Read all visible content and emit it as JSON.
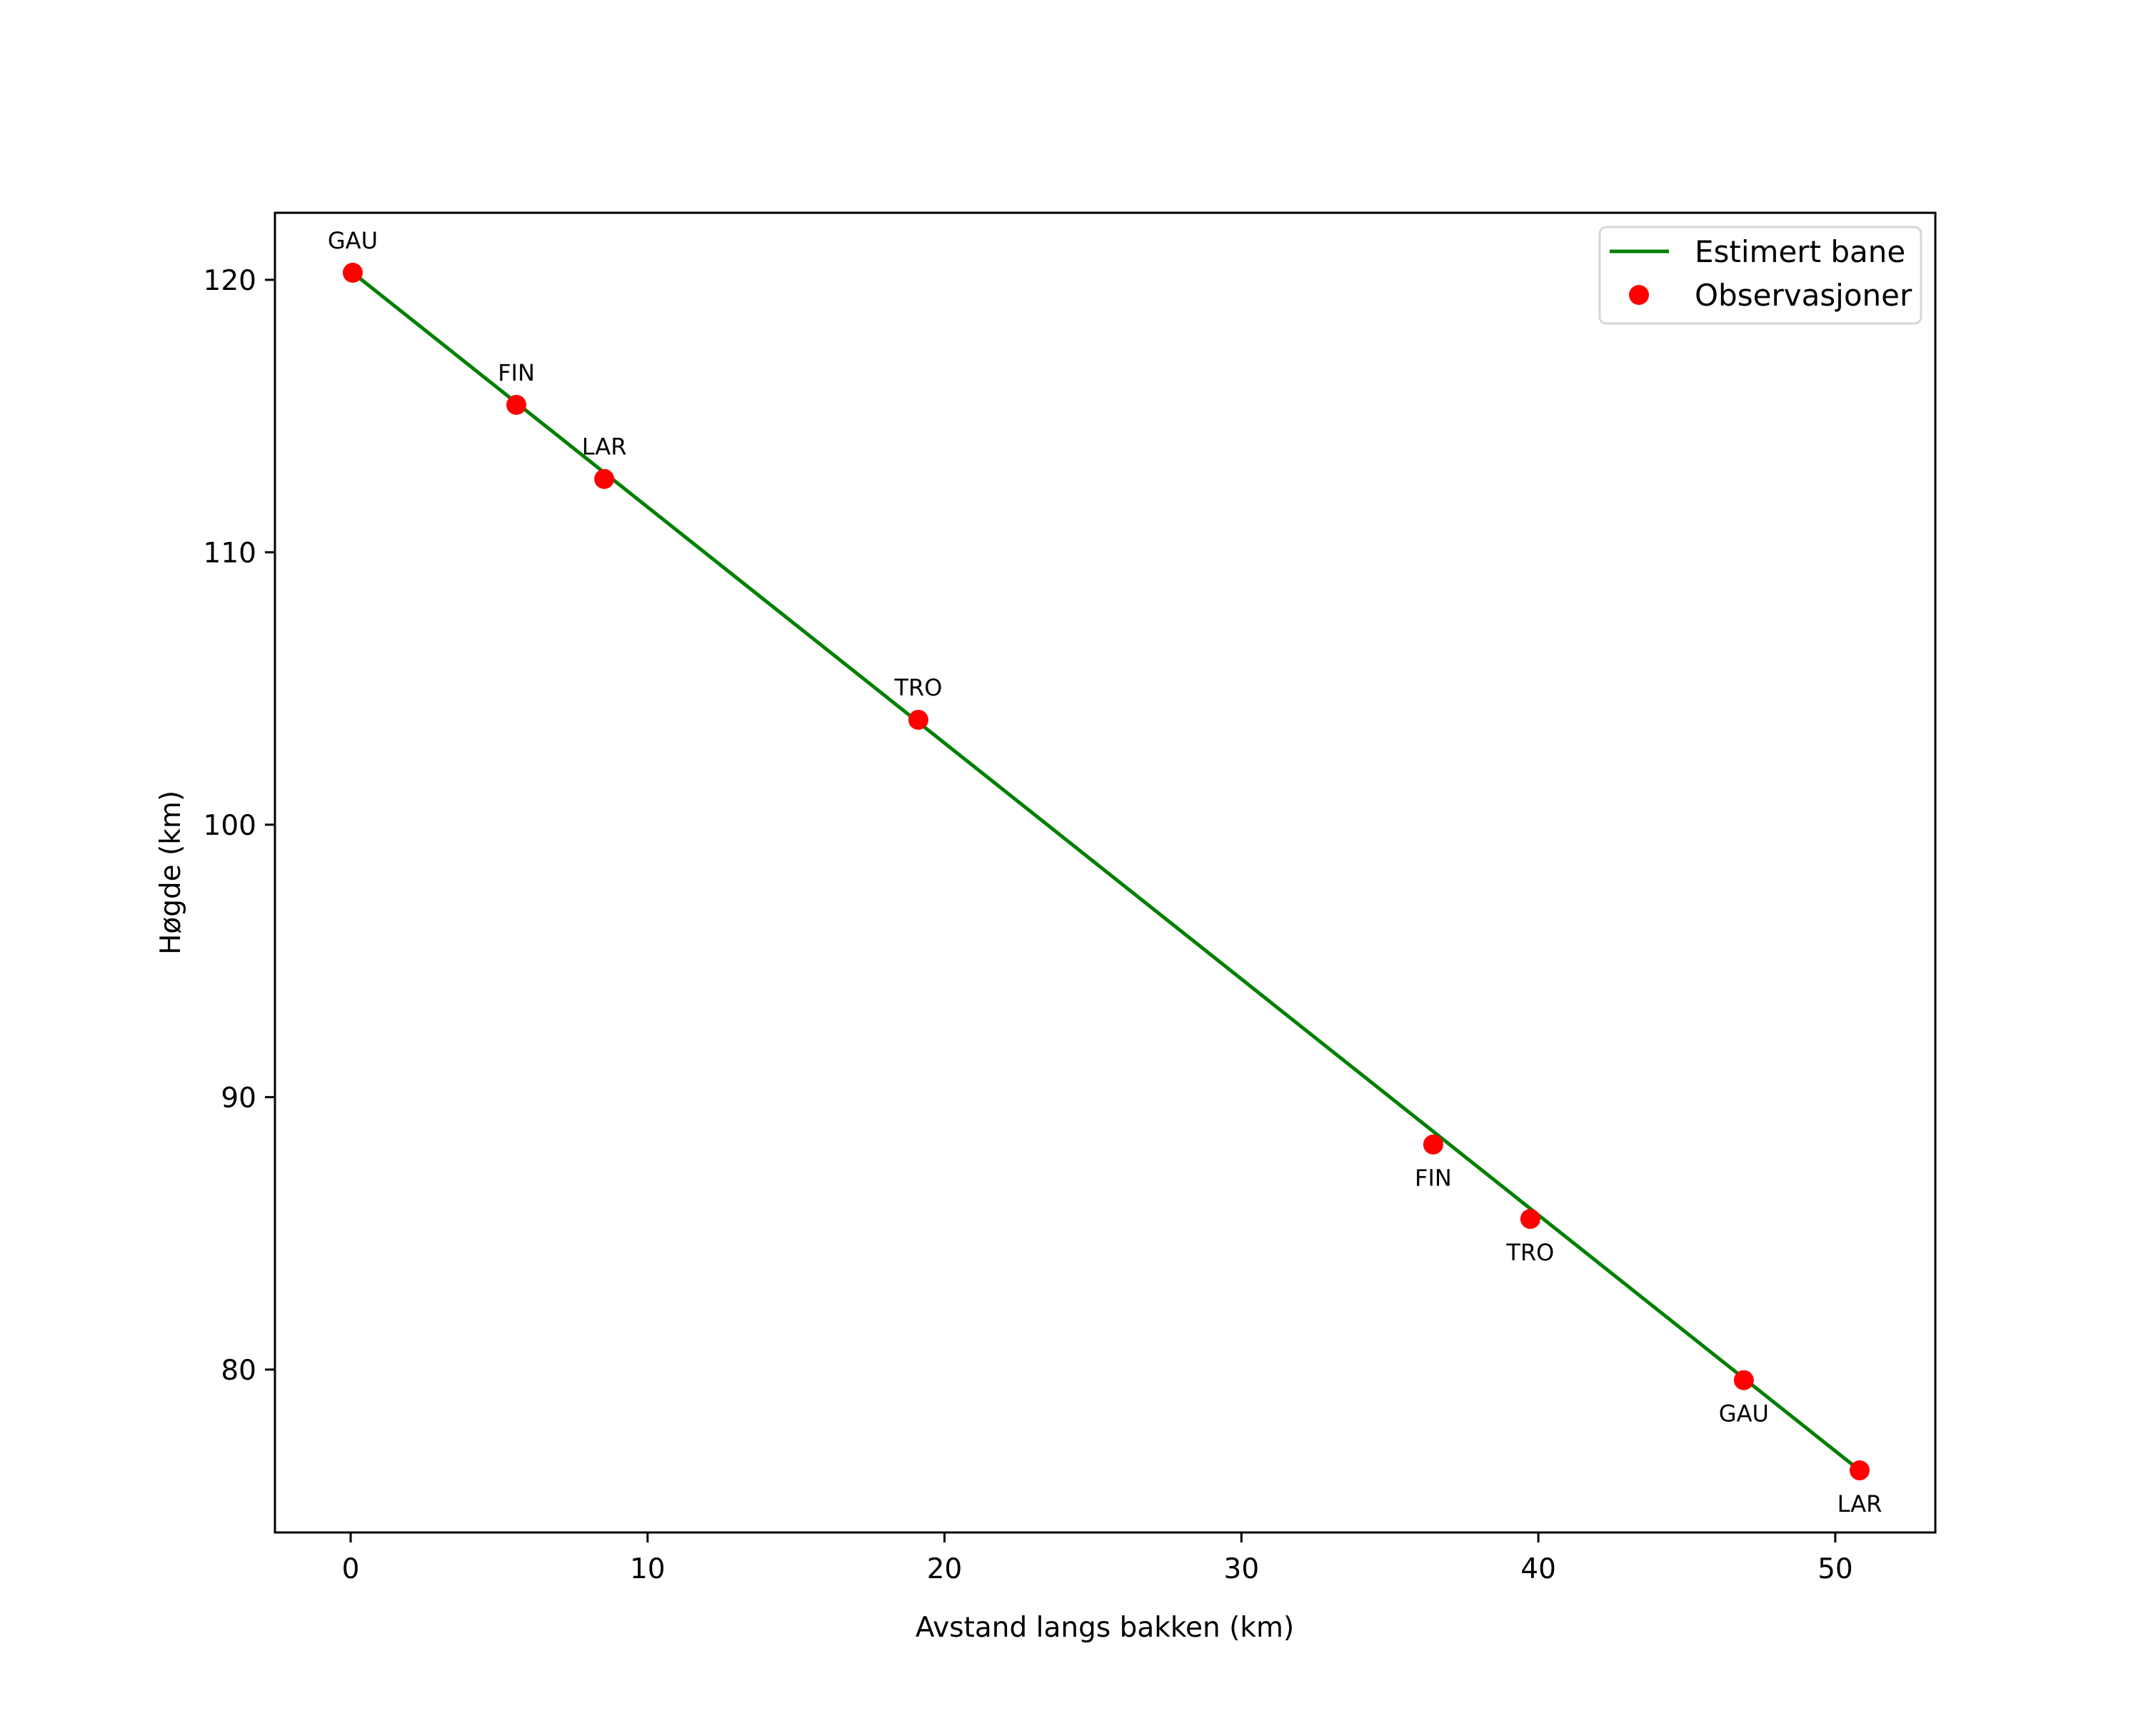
{
  "chart_data": {
    "type": "line",
    "title": "",
    "xlabel": "Avstand langs bakken (km)",
    "ylabel": "Høgde (km)",
    "xlim": [
      -2.55,
      53.37
    ],
    "ylim": [
      74.02,
      122.46
    ],
    "xticks": [
      0,
      10,
      20,
      30,
      40,
      50
    ],
    "yticks": [
      80,
      90,
      100,
      110,
      120
    ],
    "xtick_labels": [
      "0",
      "10",
      "20",
      "30",
      "40",
      "50"
    ],
    "ytick_labels": [
      "80",
      "90",
      "100",
      "110",
      "120"
    ],
    "grid": false,
    "legend_position": "upper right",
    "series": [
      {
        "name": "Estimert bane",
        "kind": "line",
        "color": "#008000",
        "x": [
          0.07,
          50.82
        ],
        "y": [
          120.26,
          76.3
        ]
      },
      {
        "name": "Observasjoner",
        "kind": "scatter",
        "color": "#ff0000",
        "points": [
          {
            "label": "GAU",
            "x": 0.07,
            "y": 120.26,
            "label_pos": "above"
          },
          {
            "label": "FIN",
            "x": 5.58,
            "y": 115.41,
            "label_pos": "above"
          },
          {
            "label": "LAR",
            "x": 8.54,
            "y": 112.69,
            "label_pos": "above"
          },
          {
            "label": "TRO",
            "x": 19.12,
            "y": 103.85,
            "label_pos": "above"
          },
          {
            "label": "FIN",
            "x": 36.46,
            "y": 88.26,
            "label_pos": "below"
          },
          {
            "label": "TRO",
            "x": 39.73,
            "y": 85.53,
            "label_pos": "below"
          },
          {
            "label": "GAU",
            "x": 46.92,
            "y": 79.61,
            "label_pos": "below"
          },
          {
            "label": "LAR",
            "x": 50.82,
            "y": 76.3,
            "label_pos": "below"
          }
        ]
      }
    ]
  },
  "legend": {
    "items": [
      {
        "label": "Estimert bane",
        "symbol": "line",
        "color": "#008000"
      },
      {
        "label": "Observasjoner",
        "symbol": "dot",
        "color": "#ff0000"
      }
    ]
  }
}
